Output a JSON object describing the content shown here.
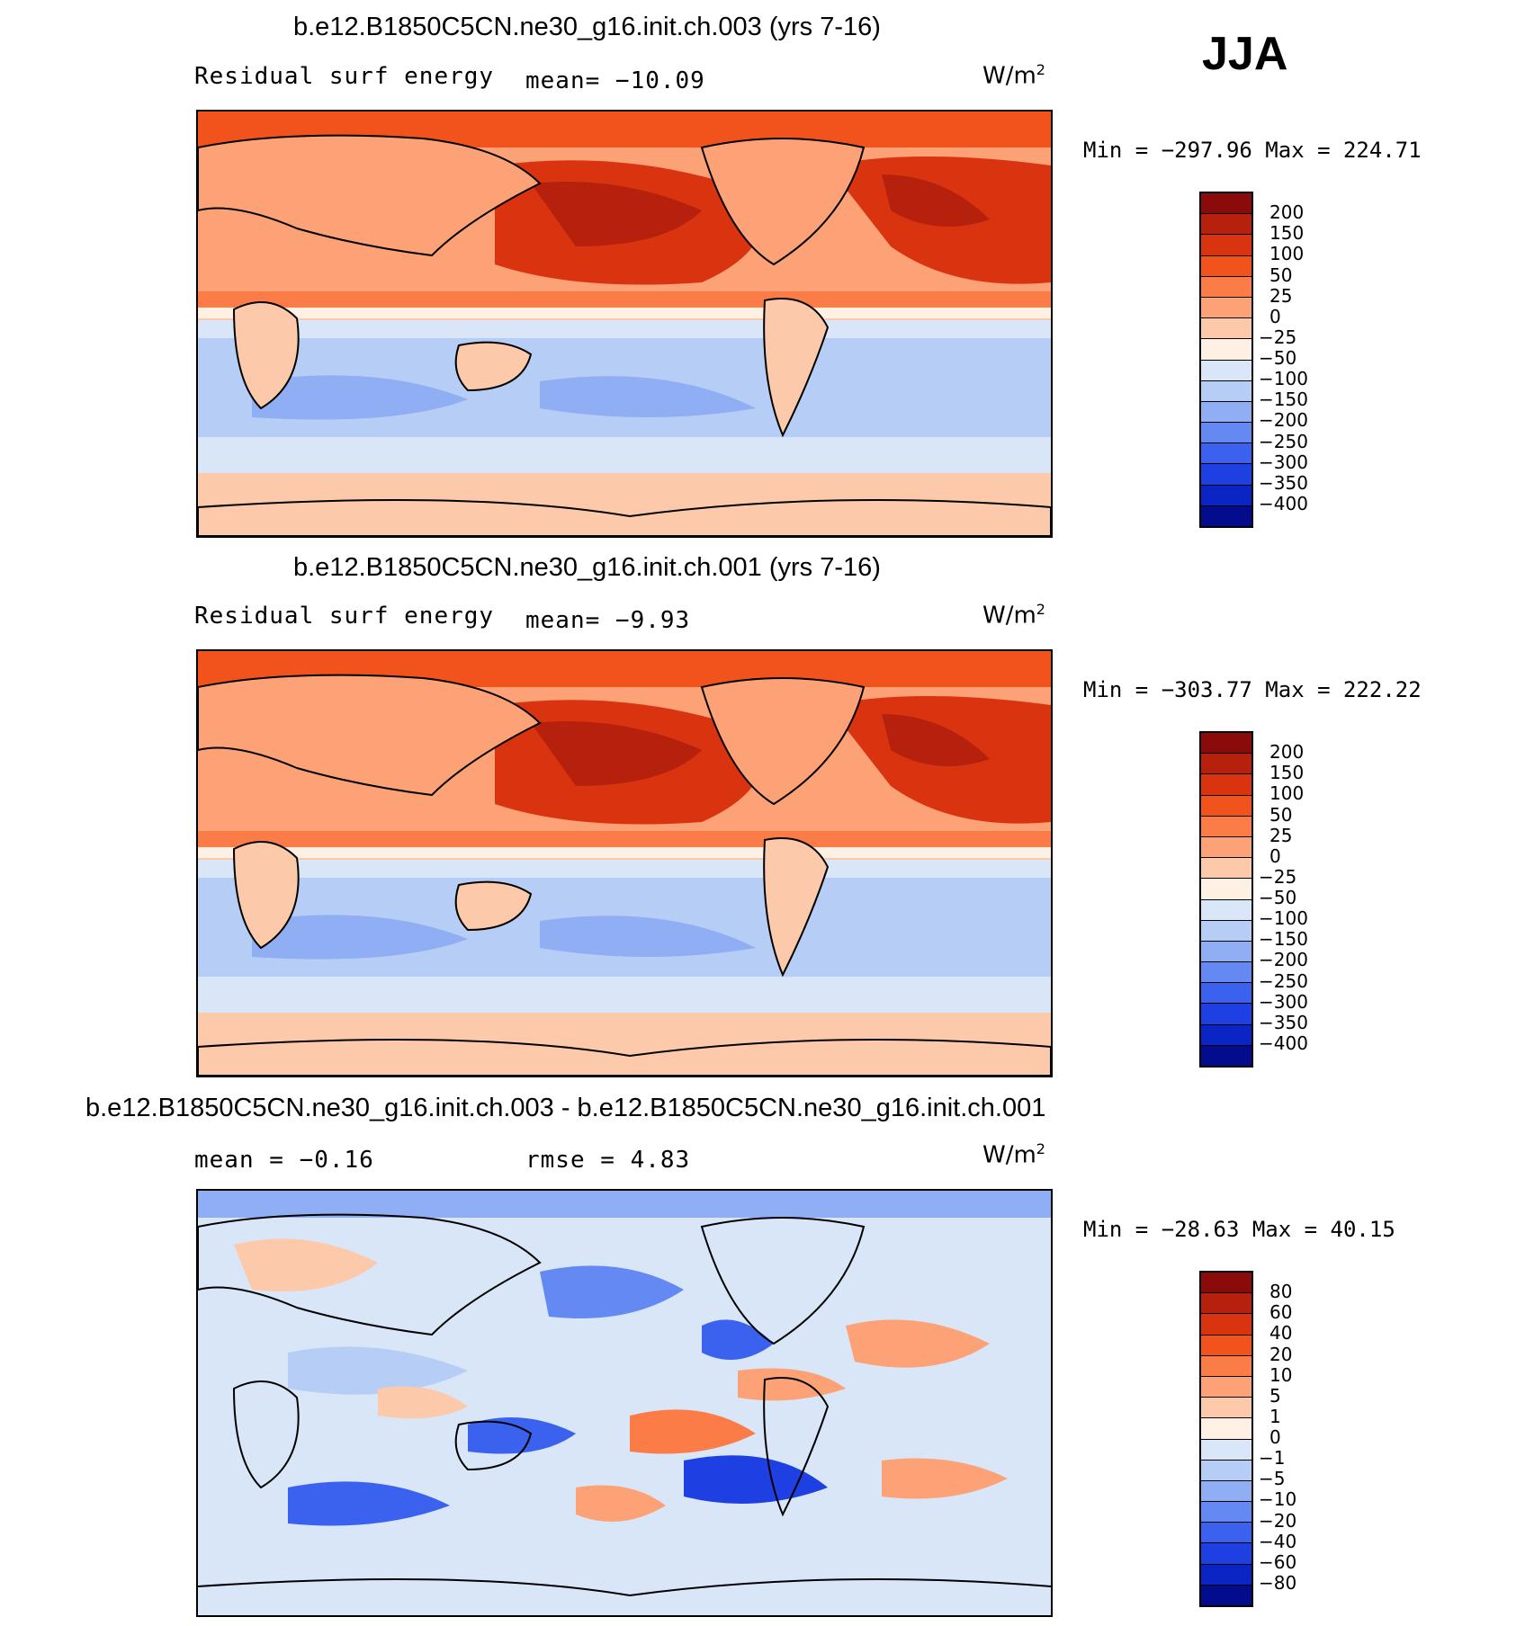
{
  "season": "JJA",
  "panels": [
    {
      "title": "b.e12.B1850C5CN.ne30_g16.init.ch.003 (yrs 7-16)",
      "left_label": "Residual surf energy",
      "center_label": "mean= −10.09",
      "units": "W/m",
      "units_exp": "2",
      "minmax": "Min = −297.96 Max = 224.71",
      "map_alt": "Map of residual surface energy, case ch.003",
      "colorbar": {
        "colors": [
          "#8b0a0a",
          "#b5210c",
          "#d9340f",
          "#f2531c",
          "#fb7c47",
          "#fca276",
          "#fdc9ab",
          "#fef0e2",
          "#d8e6f8",
          "#b6cdf5",
          "#8faef4",
          "#6489f2",
          "#3a62ee",
          "#1e3fe2",
          "#0a25c3",
          "#020c8c"
        ],
        "labels": [
          "200",
          "150",
          "100",
          "50",
          "25",
          "0",
          "−25",
          "−50",
          "−100",
          "−150",
          "−200",
          "−250",
          "−300",
          "−350",
          "−400"
        ]
      }
    },
    {
      "title": "b.e12.B1850C5CN.ne30_g16.init.ch.001 (yrs 7-16)",
      "left_label": "Residual surf energy",
      "center_label": "mean=  −9.93",
      "units": "W/m",
      "units_exp": "2",
      "minmax": "Min = −303.77 Max = 222.22",
      "map_alt": "Map of residual surface energy, case ch.001",
      "colorbar": {
        "colors": [
          "#8b0a0a",
          "#b5210c",
          "#d9340f",
          "#f2531c",
          "#fb7c47",
          "#fca276",
          "#fdc9ab",
          "#fef0e2",
          "#d8e6f8",
          "#b6cdf5",
          "#8faef4",
          "#6489f2",
          "#3a62ee",
          "#1e3fe2",
          "#0a25c3",
          "#020c8c"
        ],
        "labels": [
          "200",
          "150",
          "100",
          "50",
          "25",
          "0",
          "−25",
          "−50",
          "−100",
          "−150",
          "−200",
          "−250",
          "−300",
          "−350",
          "−400"
        ]
      }
    },
    {
      "title": "b.e12.B1850C5CN.ne30_g16.init.ch.003 - b.e12.B1850C5CN.ne30_g16.init.ch.001",
      "left_label": "mean =   −0.16",
      "center_label": "rmse =    4.83",
      "units": "W/m",
      "units_exp": "2",
      "minmax": "Min = −28.63 Max =  40.15",
      "map_alt": "Difference map of residual surface energy",
      "colorbar": {
        "colors": [
          "#8b0a0a",
          "#b5210c",
          "#d9340f",
          "#f2531c",
          "#fb7c47",
          "#fca276",
          "#fdc9ab",
          "#fef0e2",
          "#d8e6f8",
          "#b6cdf5",
          "#8faef4",
          "#6489f2",
          "#3a62ee",
          "#1e3fe2",
          "#0a25c3",
          "#020c8c"
        ],
        "labels": [
          "80",
          "60",
          "40",
          "20",
          "10",
          "5",
          "1",
          "0",
          "−1",
          "−5",
          "−10",
          "−20",
          "−40",
          "−60",
          "−80"
        ]
      }
    }
  ]
}
